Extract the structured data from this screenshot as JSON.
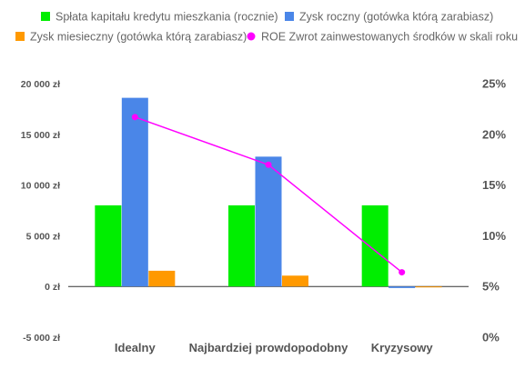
{
  "chart_data": {
    "type": "bar",
    "title": "",
    "categories": [
      "Idealny",
      "Najbardziej prowdopodobny",
      "Kryzysowy"
    ],
    "series": [
      {
        "name": "Spłata kapitału kredytu mieszkania (rocznie)",
        "type": "bar",
        "axis": "left",
        "color": "#00ee00",
        "values": [
          8000,
          8000,
          8000
        ]
      },
      {
        "name": "Zysk roczny (gotówka którą zarabiasz)",
        "type": "bar",
        "axis": "left",
        "color": "#4a86e8",
        "values": [
          18600,
          12800,
          -150
        ]
      },
      {
        "name": "Zysk miesieczny (gotówka którą zarabiasz)",
        "type": "bar",
        "axis": "left",
        "color": "#ff9900",
        "values": [
          1550,
          1070,
          -15
        ]
      },
      {
        "name": "ROE Zwrot zainwestowanych środków w skali roku",
        "type": "line",
        "axis": "right",
        "color": "#ff00ff",
        "values": [
          21.7,
          17.0,
          6.4
        ]
      }
    ],
    "y_left": {
      "range": [
        -5000,
        20000
      ],
      "ticks": [
        -5000,
        0,
        5000,
        10000,
        15000,
        20000
      ],
      "tick_labels": [
        "-5 000 zł",
        "0 zł",
        "5 000 zł",
        "10 000 zł",
        "15 000 zł",
        "20 000 zł"
      ]
    },
    "y_right": {
      "range": [
        0,
        25
      ],
      "ticks": [
        0,
        5,
        10,
        15,
        20,
        25
      ],
      "tick_labels": [
        "0%",
        "5%",
        "10%",
        "15%",
        "20%",
        "25%"
      ]
    },
    "grid": false,
    "legend_position": "top",
    "colors": {
      "axis_line": "#333333",
      "text": "#555555",
      "legend_text": "#666666"
    }
  }
}
